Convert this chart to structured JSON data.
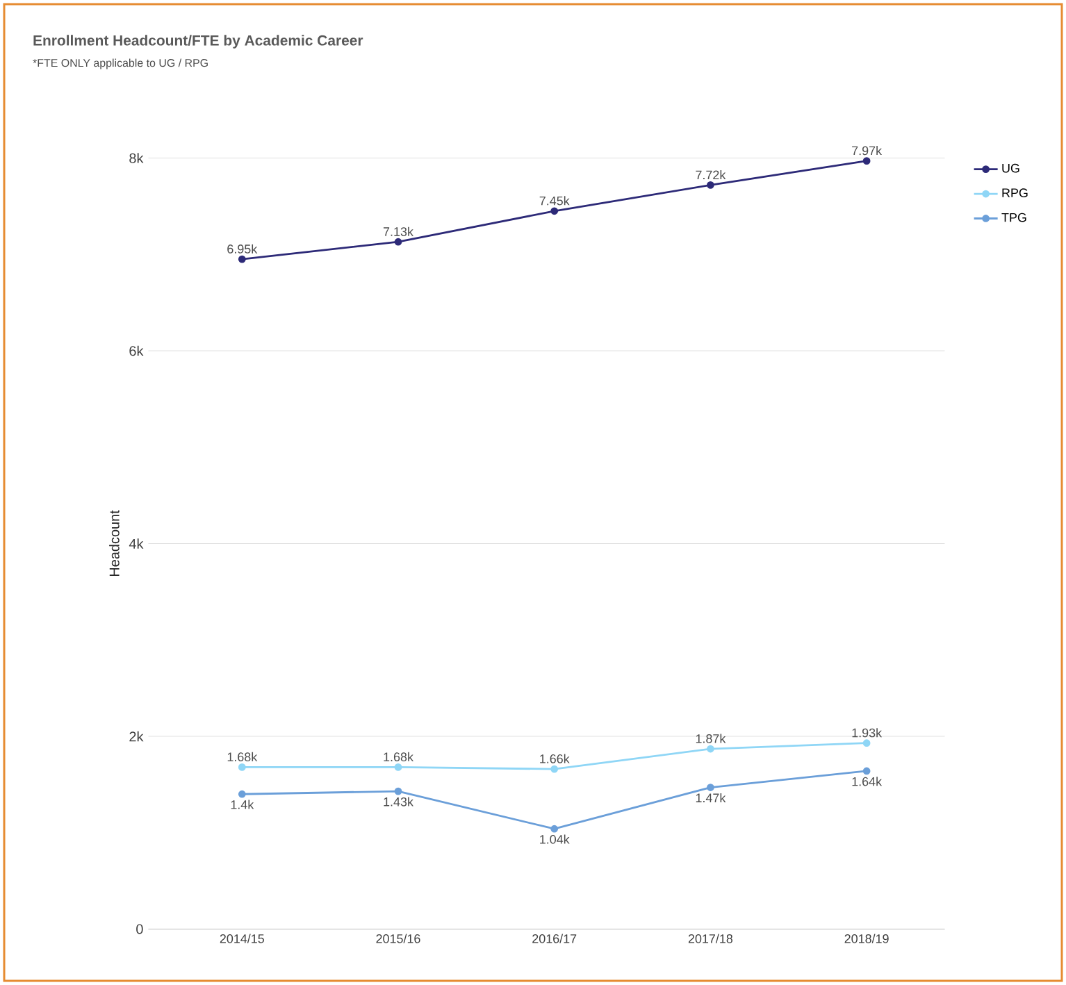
{
  "chart_data": {
    "type": "line",
    "title": "Enrollment Headcount/FTE by Academic Career",
    "subtitle": "*FTE ONLY applicable to UG / RPG",
    "ylabel": "Headcount",
    "categories": [
      "2014/15",
      "2015/16",
      "2016/17",
      "2017/18",
      "2018/19"
    ],
    "series": [
      {
        "name": "UG",
        "color": "#2d2a78",
        "values": [
          6950,
          7130,
          7450,
          7720,
          7970
        ],
        "value_labels": [
          "6.95k",
          "7.13k",
          "7.45k",
          "7.72k",
          "7.97k"
        ]
      },
      {
        "name": "RPG",
        "color": "#8fd6f6",
        "values": [
          1680,
          1680,
          1660,
          1870,
          1930
        ],
        "value_labels": [
          "1.68k",
          "1.68k",
          "1.66k",
          "1.87k",
          "1.93k"
        ]
      },
      {
        "name": "TPG",
        "color": "#6b9fd9",
        "values": [
          1400,
          1430,
          1040,
          1470,
          1640
        ],
        "value_labels": [
          "1.4k",
          "1.43k",
          "1.04k",
          "1.47k",
          "1.64k"
        ]
      }
    ],
    "ylim": [
      0,
      8000
    ],
    "yticks": [
      0,
      {
        "value": 2000,
        "label": "2k"
      },
      {
        "value": 4000,
        "label": "4k"
      },
      {
        "value": 6000,
        "label": "6k"
      },
      {
        "value": 8000,
        "label": "8k"
      }
    ],
    "grid": "y",
    "legend": "top right",
    "marker": "circle",
    "line_style": "solid"
  }
}
